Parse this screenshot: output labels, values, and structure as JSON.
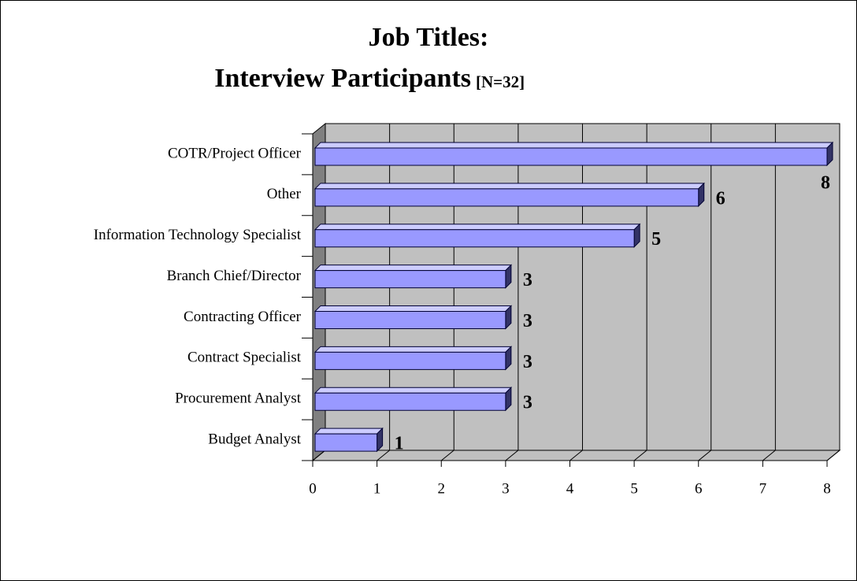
{
  "chart_data": {
    "type": "bar3d_horizontal",
    "title_lines": [
      "Job Titles:",
      "Interview Participants"
    ],
    "title_note": "[N=32]",
    "categories": [
      "COTR/Project Officer",
      "Other",
      "Information Technology Specialist",
      "Branch Chief/Director",
      "Contracting Officer",
      "Contract Specialist",
      "Procurement Analyst",
      "Budget Analyst"
    ],
    "values": [
      8,
      6,
      5,
      3,
      3,
      3,
      3,
      1
    ],
    "color": "#9999ff",
    "xlim": [
      0,
      8
    ],
    "xticks": [
      0,
      1,
      2,
      3,
      4,
      5,
      6,
      7,
      8
    ],
    "grid": true
  }
}
